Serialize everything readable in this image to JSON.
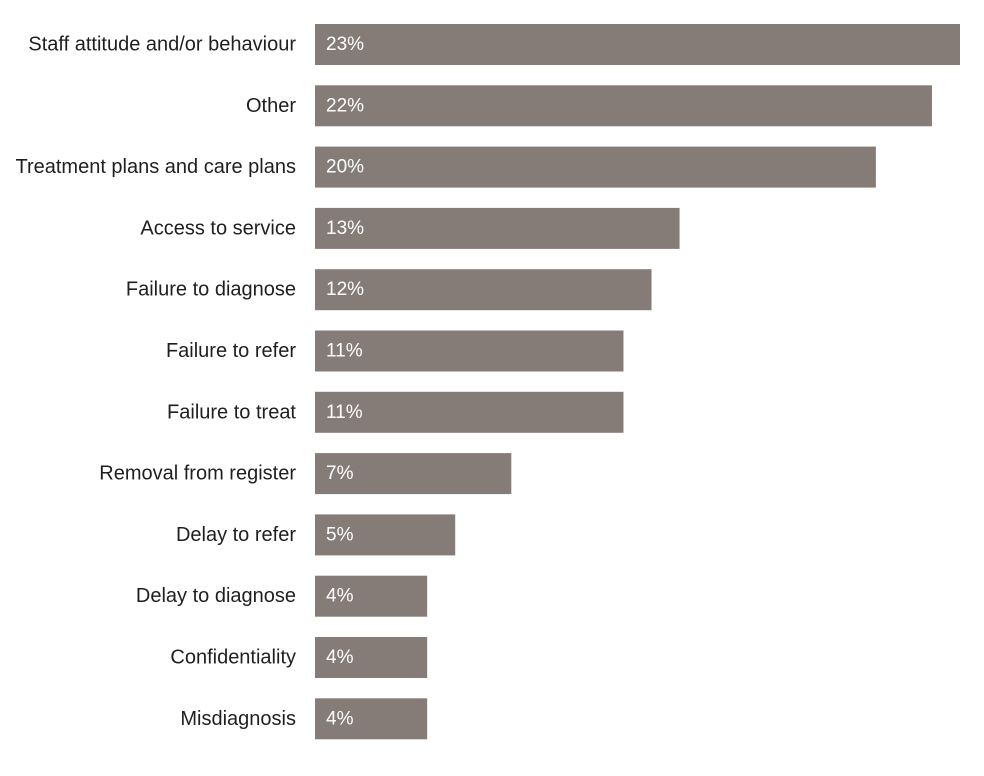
{
  "chart_data": {
    "type": "bar",
    "orientation": "horizontal",
    "categories": [
      "Staff attitude and/or behaviour",
      "Other",
      "Treatment plans and care plans",
      "Access to service",
      "Failure to diagnose",
      "Failure to refer",
      "Failure to treat",
      "Removal from register",
      "Delay to refer",
      "Delay to diagnose",
      "Confidentiality",
      "Misdiagnosis"
    ],
    "values": [
      23,
      22,
      20,
      13,
      12,
      11,
      11,
      7,
      5,
      4,
      4,
      4
    ],
    "value_labels": [
      "23%",
      "22%",
      "20%",
      "13%",
      "12%",
      "11%",
      "11%",
      "7%",
      "5%",
      "4%",
      "4%",
      "4%"
    ],
    "unit": "%",
    "title": "",
    "xlabel": "",
    "ylabel": "",
    "xlim": [
      0,
      23
    ],
    "grid": false,
    "legend": "none",
    "bar_color": "#857c78",
    "label_color": "#ffffff",
    "text_color": "#1f1f1f"
  }
}
